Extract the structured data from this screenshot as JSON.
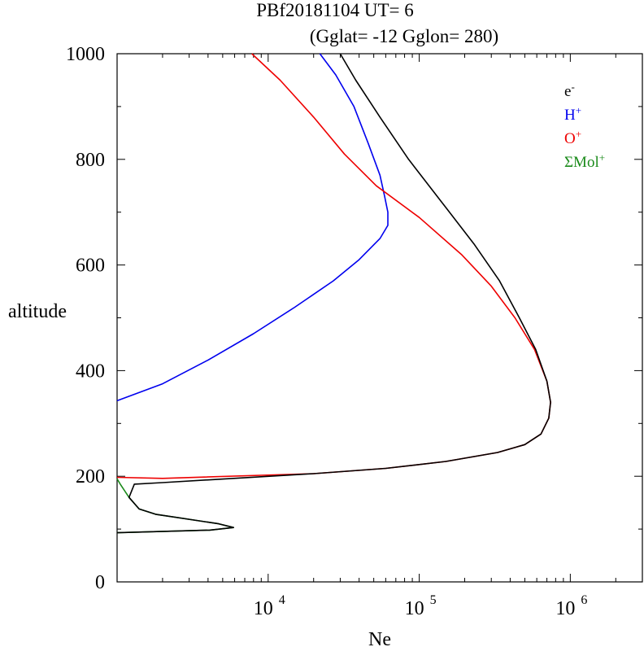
{
  "chart_data": {
    "type": "line",
    "title": "PBf20181104   UT=  6",
    "subtitle": "(Gglat= -12   Gglon=  280)",
    "xlabel": "Ne",
    "ylabel": "altitude",
    "x_scale": "log",
    "xlim": [
      1000,
      3000000
    ],
    "ylim": [
      0,
      1000
    ],
    "x_ticks": [
      {
        "base": "10",
        "exp": "4"
      },
      {
        "base": "10",
        "exp": "5"
      },
      {
        "base": "10",
        "exp": "6"
      }
    ],
    "y_ticks": [
      "0",
      "200",
      "400",
      "600",
      "800",
      "1000"
    ],
    "grid": false,
    "legend_position": "top-right",
    "series": [
      {
        "key": "mol",
        "legend_base": "ΣMol",
        "legend_sup": "+",
        "color": "#1a8a1a",
        "points": [
          [
            1000,
            93
          ],
          [
            4100,
            98
          ],
          [
            5900,
            103
          ],
          [
            4700,
            110
          ],
          [
            1800,
            128
          ],
          [
            1400,
            138
          ],
          [
            1200,
            160
          ],
          [
            1050,
            185
          ],
          [
            1000,
            195
          ]
        ]
      },
      {
        "key": "h",
        "legend_base": "H",
        "legend_sup": "+",
        "color": "#0000ee",
        "points": [
          [
            1000,
            343
          ],
          [
            2000,
            375
          ],
          [
            4000,
            420
          ],
          [
            8000,
            470
          ],
          [
            15000,
            520
          ],
          [
            27000,
            570
          ],
          [
            40000,
            610
          ],
          [
            55000,
            650
          ],
          [
            62000,
            675
          ],
          [
            62000,
            700
          ],
          [
            59000,
            730
          ],
          [
            55000,
            770
          ],
          [
            46000,
            830
          ],
          [
            37000,
            900
          ],
          [
            28000,
            960
          ],
          [
            22000,
            1000
          ]
        ]
      },
      {
        "key": "o",
        "legend_base": "O",
        "legend_sup": "+",
        "color": "#ee0000",
        "points": [
          [
            1000,
            198
          ],
          [
            2000,
            196
          ],
          [
            20000,
            205
          ],
          [
            60000,
            215
          ],
          [
            150000,
            228
          ],
          [
            330000,
            245
          ],
          [
            500000,
            260
          ],
          [
            640000,
            280
          ],
          [
            720000,
            310
          ],
          [
            740000,
            340
          ],
          [
            700000,
            380
          ],
          [
            580000,
            440
          ],
          [
            430000,
            500
          ],
          [
            300000,
            560
          ],
          [
            190000,
            620
          ],
          [
            100000,
            690
          ],
          [
            52000,
            750
          ],
          [
            32000,
            810
          ],
          [
            20000,
            880
          ],
          [
            12000,
            950
          ],
          [
            7800,
            1000
          ]
        ]
      },
      {
        "key": "e",
        "legend_base": "e",
        "legend_sup": "-",
        "color": "#000000",
        "points": [
          [
            1000,
            93
          ],
          [
            4100,
            98
          ],
          [
            5900,
            103
          ],
          [
            4700,
            110
          ],
          [
            1800,
            128
          ],
          [
            1400,
            138
          ],
          [
            1200,
            160
          ],
          [
            1300,
            185
          ],
          [
            2000,
            188
          ],
          [
            20000,
            205
          ],
          [
            60000,
            215
          ],
          [
            150000,
            228
          ],
          [
            330000,
            245
          ],
          [
            500000,
            260
          ],
          [
            640000,
            280
          ],
          [
            720000,
            310
          ],
          [
            740000,
            340
          ],
          [
            700000,
            380
          ],
          [
            590000,
            440
          ],
          [
            460000,
            500
          ],
          [
            340000,
            570
          ],
          [
            230000,
            640
          ],
          [
            140000,
            720
          ],
          [
            85000,
            800
          ],
          [
            55000,
            880
          ],
          [
            38000,
            950
          ],
          [
            30000,
            1000
          ]
        ]
      }
    ]
  }
}
